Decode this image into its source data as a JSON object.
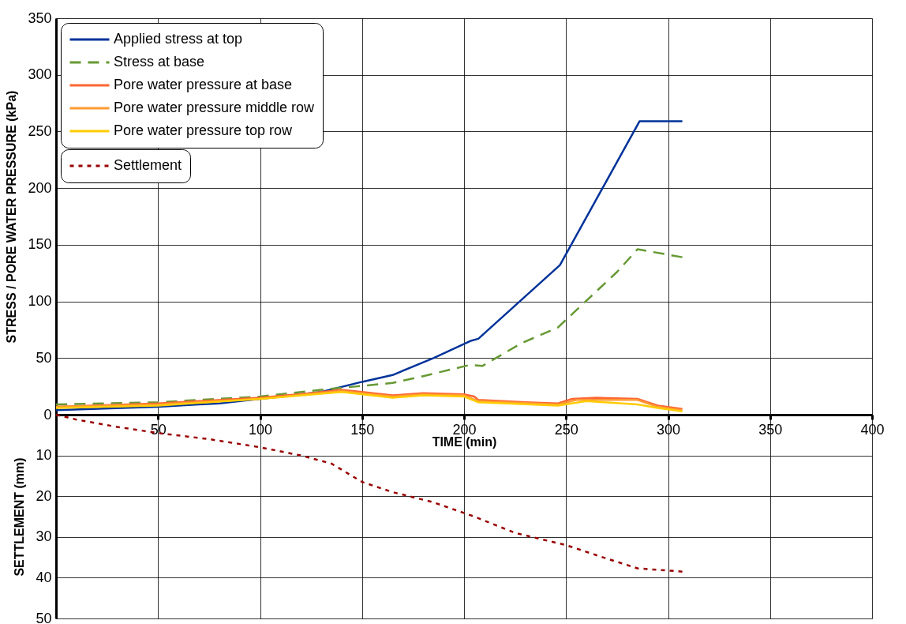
{
  "chart_data": [
    {
      "type": "line",
      "xlabel": "TIME (min)",
      "ylabel": "STRESS / PORE WATER  PRESSURE (kPa)",
      "xlim": [
        0,
        400
      ],
      "xticks": [
        {
          "value": 0,
          "label": null
        },
        50,
        100,
        150,
        200,
        250,
        300,
        350,
        400
      ],
      "ylim": [
        0,
        350
      ],
      "yticks": [
        0,
        50,
        100,
        150,
        200,
        250,
        300,
        350
      ],
      "grid": true,
      "legend": "top left",
      "series": [
        {
          "name": "Applied stress at top",
          "color": "#003399",
          "line_style": "solid",
          "x": [
            0,
            50,
            80,
            100,
            130,
            150,
            165,
            185,
            203,
            207,
            247,
            286,
            307
          ],
          "values": [
            4,
            7,
            10,
            14,
            20,
            29,
            35,
            50,
            65,
            67,
            132,
            259,
            259
          ]
        },
        {
          "name": "Stress at base",
          "color": "#669933",
          "line_style": "dashed",
          "x": [
            0,
            50,
            100,
            130,
            165,
            180,
            203,
            209,
            228,
            246,
            275,
            285,
            307
          ],
          "values": [
            9,
            11,
            16,
            22,
            28,
            34,
            44,
            43,
            63,
            77,
            126,
            146,
            139
          ]
        },
        {
          "name": "Pore water pressure at base",
          "color": "#ff6633",
          "line_style": "solid",
          "x": [
            0,
            50,
            100,
            125,
            140,
            150,
            165,
            180,
            200,
            205,
            207,
            230,
            246,
            253,
            265,
            285,
            295,
            307
          ],
          "values": [
            7,
            10,
            15,
            19,
            22,
            20,
            17,
            19,
            18,
            16,
            13,
            11,
            10,
            14,
            15,
            14,
            8,
            5
          ]
        },
        {
          "name": "Pore water pressure middle row",
          "color": "#ff9933",
          "line_style": "solid",
          "x": [
            0,
            50,
            100,
            140,
            165,
            180,
            200,
            207,
            246,
            255,
            285,
            295,
            307
          ],
          "values": [
            7,
            9,
            14,
            21,
            16,
            18,
            17,
            12,
            9,
            13,
            13,
            7,
            4
          ]
        },
        {
          "name": "Pore water pressure top row",
          "color": "#ffcc00",
          "line_style": "solid",
          "x": [
            0,
            50,
            100,
            140,
            165,
            180,
            200,
            207,
            246,
            260,
            285,
            295,
            307
          ],
          "values": [
            6,
            8,
            14,
            20,
            15,
            17,
            16,
            11,
            8,
            12,
            9,
            6,
            3
          ]
        }
      ]
    },
    {
      "type": "line",
      "ylabel": "SETTLEMENT (mm)",
      "xlim": [
        0,
        400
      ],
      "xticks": [
        {
          "value": 0,
          "label": null
        },
        50,
        100,
        150,
        200,
        250,
        300,
        350,
        400
      ],
      "ylim": [
        50,
        0
      ],
      "yticks": [
        10,
        20,
        30,
        40,
        50
      ],
      "grid": true,
      "tick_labels": "y",
      "legend": "top left",
      "series": [
        {
          "name": "Settlement",
          "color": "#990000",
          "line_style": "dotted",
          "x": [
            0,
            10,
            30,
            50,
            75,
            100,
            120,
            135,
            150,
            165,
            185,
            205,
            225,
            250,
            265,
            285,
            307
          ],
          "values": [
            0,
            1.2,
            3,
            4.5,
            6,
            8,
            10,
            12,
            16.5,
            19,
            21.5,
            25,
            29,
            32,
            34.5,
            37.7,
            38.5
          ]
        }
      ]
    }
  ]
}
